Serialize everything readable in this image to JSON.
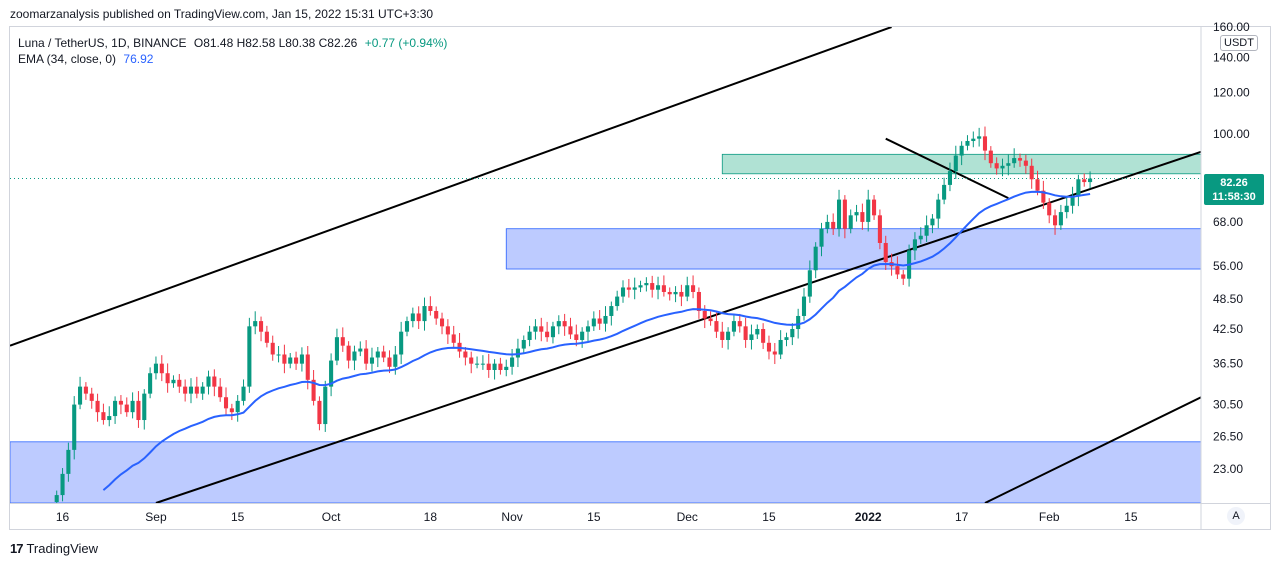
{
  "header": {
    "published": "zoomarzanalysis published on TradingView.com, Jan 15, 2022 15:31 UTC+3:30"
  },
  "legend": {
    "symbol": "Luna / TetherUS, 1D, BINANCE",
    "ohlc": "O81.48  H82.58  L80.38  C82.26",
    "change": "+0.77 (+0.94%)",
    "ema_label": "EMA (34, close, 0)",
    "ema_value": "76.92"
  },
  "price_axis": {
    "unit": "USDT"
  },
  "last_price": {
    "value": "82.26",
    "countdown": "11:58:30"
  },
  "auto_button": "A",
  "branding": {
    "logo": "17",
    "name": "TradingView"
  },
  "colors": {
    "up": "#089981",
    "down": "#f23645",
    "ema": "#2962ff",
    "zone_blue": "#b2c2ff",
    "zone_green": "#a7dfcf",
    "trendline": "#000000"
  },
  "chart_data": {
    "type": "candlestick",
    "title": "Luna / TetherUS, 1D, BINANCE",
    "scale": "log",
    "ylim": [
      19.8,
      160
    ],
    "y_ticks": [
      "160.00",
      "140.00",
      "120.00",
      "100.00",
      "80.00",
      "68.00",
      "56.00",
      "48.50",
      "42.50",
      "36.50",
      "30.50",
      "26.50",
      "23.00"
    ],
    "x_ticks": [
      "16",
      "Sep",
      "15",
      "Oct",
      "18",
      "Nov",
      "15",
      "Dec",
      "15",
      "2022",
      "17",
      "Feb",
      "15"
    ],
    "x_tick_days": [
      0,
      16,
      30,
      46,
      63,
      77,
      91,
      107,
      121,
      138,
      154,
      169,
      183
    ],
    "x_range_days": [
      -9,
      195
    ],
    "start_day": -1,
    "closes": [
      20.5,
      22.5,
      25,
      30.5,
      33,
      32,
      31,
      29.5,
      28.5,
      29,
      31,
      30.5,
      29.5,
      31,
      28.5,
      32,
      35,
      36.5,
      35,
      33.5,
      34,
      33,
      32,
      33,
      32,
      33,
      34.5,
      33,
      31.5,
      30,
      29.5,
      31,
      33,
      43,
      44,
      42,
      40,
      38,
      38,
      36.5,
      37.5,
      36.5,
      38,
      34,
      31,
      28,
      33,
      37,
      41,
      39.5,
      37,
      38.5,
      39,
      36.5,
      37.5,
      38.5,
      37.5,
      36,
      38,
      42,
      44,
      45.5,
      44,
      47,
      46,
      44.5,
      43,
      41.5,
      40,
      38.5,
      37.5,
      36.5,
      36.5,
      36.5,
      35.5,
      36.5,
      35.5,
      36,
      37.5,
      39,
      40.5,
      42,
      43,
      42,
      41,
      43,
      44,
      43,
      41.5,
      40.5,
      42,
      43,
      44.5,
      43.5,
      45,
      47,
      49,
      51,
      50.5,
      51,
      51.5,
      52,
      50.5,
      51.5,
      50,
      49.5,
      50,
      49,
      51.5,
      50,
      46,
      44.5,
      44,
      42,
      40.5,
      42,
      44,
      43,
      40.5,
      41.5,
      42.5,
      40,
      38.5,
      38,
      40.5,
      41,
      42.5,
      45,
      49,
      55,
      61,
      66,
      68,
      66,
      75,
      66,
      70,
      71,
      68,
      75,
      70,
      62,
      57,
      56,
      54,
      53,
      60,
      63,
      64,
      67,
      69,
      75,
      80,
      85,
      91,
      95,
      97,
      98,
      99,
      93,
      88,
      86,
      87,
      88,
      90,
      89,
      87,
      82,
      78,
      74,
      70,
      67,
      71,
      73,
      76,
      82,
      81,
      82.26
    ]
  }
}
